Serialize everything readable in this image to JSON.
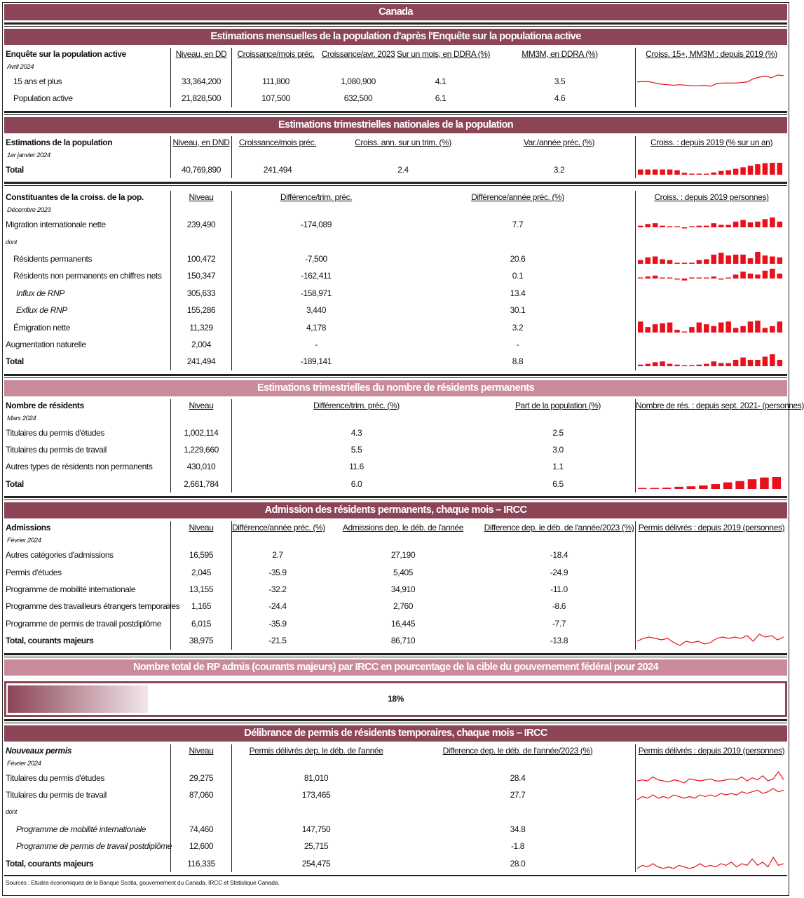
{
  "title": "Canada",
  "sections": [
    {
      "kind": "table",
      "theme": "dark",
      "title": "Estimations mensuelles de la population d'après l'Enquête sur la populationa active",
      "blocks": [
        {
          "label": "Enquête sur la population active",
          "sub": "Avril 2024",
          "headers": [
            "Niveau, en DD",
            "Croissance/mois préc.",
            "Croissance/avr. 2023",
            "Sur un mois, en DDRA (%)",
            "MM3M, en DDRA (%)"
          ],
          "chart_title": "Croiss. 15+, MM3M : depuis 2019 (%)",
          "rows": [
            {
              "label": "15 ans et plus",
              "style": "indent",
              "values": [
                "33,364,200",
                "111,800",
                "1,080,900",
                "4.1",
                "3.5"
              ],
              "spark": "lfs"
            },
            {
              "label": "Population active",
              "style": "indent",
              "values": [
                "21,828,500",
                "107,500",
                "632,500",
                "6.1",
                "4.6"
              ]
            }
          ]
        }
      ]
    },
    {
      "kind": "table",
      "theme": "dark",
      "title": "Estimations trimestrielles nationales de la population",
      "blocks": [
        {
          "label": "Estimations de la population",
          "sub": "1er janvier 2024",
          "headers": [
            "Niveau, en DND",
            "Croissance/mois préc.",
            "Croiss. ann. sur un trim. (%)",
            "Var./année préc. (%)"
          ],
          "chart_title": "Croiss. : depuis 2019 (% sur un an)",
          "rows": [
            {
              "label": "Total",
              "style": "bold",
              "values": [
                "40,769,890",
                "241,494",
                "2.4",
                "3.2"
              ],
              "spark": "popgrowth"
            }
          ]
        },
        {
          "label": "Constituantes de la croiss. de la pop.",
          "sub": "Décembre 2023",
          "headers": [
            "Niveau",
            "Différence/trim. préc.",
            "Différence/année préc. (%)"
          ],
          "chart_title": "Croiss. : depuis 2019 personnes)",
          "rows": [
            {
              "label": "Migration internationale nette",
              "style": "",
              "values": [
                "239,490",
                "-174,089",
                "7.7"
              ],
              "spark": "migration"
            },
            {
              "label": "dont",
              "style": "dont",
              "values": [
                "",
                "",
                ""
              ]
            },
            {
              "label": "Résidents permanents",
              "style": "indent",
              "values": [
                "100,472",
                "-7,500",
                "20.6"
              ],
              "spark": "rp"
            },
            {
              "label": "Résidents non permanents en chiffres nets",
              "style": "indent",
              "values": [
                "150,347",
                "-162,411",
                "0.1"
              ],
              "spark": "rnp"
            },
            {
              "label": "Influx de RNP",
              "style": "ital",
              "values": [
                "305,633",
                "-158,971",
                "13.4"
              ]
            },
            {
              "label": "Exflux de RNP",
              "style": "ital",
              "values": [
                "155,286",
                "3,440",
                "30.1"
              ]
            },
            {
              "label": "Émigration nette",
              "style": "indent",
              "values": [
                "11,329",
                "4,178",
                "3.2"
              ],
              "spark": "emig"
            },
            {
              "label": "Augmentation naturelle",
              "style": "",
              "values": [
                "2,004",
                "-",
                "-"
              ]
            },
            {
              "label": "Total",
              "style": "bold",
              "values": [
                "241,494",
                "-189,141",
                "8.8"
              ],
              "spark": "total"
            }
          ]
        }
      ]
    },
    {
      "kind": "table",
      "theme": "light",
      "title": "Estimations trimestrielles du nombre de résidents permanents",
      "blocks": [
        {
          "label": "Nombre de résidents",
          "sub": "Mars 2024",
          "headers": [
            "Niveau",
            "Différence/trim. préc. (%)",
            "Part de la population (%)"
          ],
          "chart_title": "Nombre de rés. : depuis sept. 2021- (personnes)",
          "rows": [
            {
              "label": "Titulaires du permis d'études",
              "style": "",
              "values": [
                "1,002,114",
                "4.3",
                "2.5"
              ]
            },
            {
              "label": "Titulaires du permis de travail",
              "style": "",
              "values": [
                "1,229,660",
                "5.5",
                "3.0"
              ]
            },
            {
              "label": "Autres types de résidents non permanents",
              "style": "",
              "values": [
                "430,010",
                "11.6",
                "1.1"
              ]
            },
            {
              "label": "Total",
              "style": "bold",
              "values": [
                "2,661,784",
                "6.0",
                "6.5"
              ],
              "spark": "nrp"
            }
          ]
        }
      ]
    },
    {
      "kind": "table",
      "theme": "dark",
      "title": "Admission des résidents permanents, chaque mois – IRCC",
      "blocks": [
        {
          "label": "Admissions",
          "sub": "Février 2024",
          "headers": [
            "Niveau",
            "Différence/année préc. (%)",
            "Admissions dep. le déb. de l'année",
            "Difference dep. le déb. de l'année/2023 (%)"
          ],
          "chart_title": "Permis délivrés : depuis 2019 (personnes)",
          "rows": [
            {
              "label": "Autres catégories d'admissions",
              "style": "",
              "values": [
                "16,595",
                "2.7",
                "27,190",
                "-18.4"
              ]
            },
            {
              "label": "Permis d'études",
              "style": "",
              "values": [
                "2,045",
                "-35.9",
                "5,405",
                "-24.9"
              ]
            },
            {
              "label": "Programme de mobilité internationale",
              "style": "",
              "values": [
                "13,155",
                "-32.2",
                "34,910",
                "-11.0"
              ]
            },
            {
              "label": "Programme des travailleurs étrangers temporaires",
              "style": "",
              "values": [
                "1,165",
                "-24.4",
                "2,760",
                "-8.6"
              ]
            },
            {
              "label": "Programme de permis de travail postdiplôme",
              "style": "",
              "values": [
                "6,015",
                "-35.9",
                "16,445",
                "-7.7"
              ]
            },
            {
              "label": "Total, courants majeurs",
              "style": "bold",
              "values": [
                "38,975",
                "-21.5",
                "86,710",
                "-13.8"
              ],
              "spark": "adm"
            }
          ]
        }
      ]
    },
    {
      "kind": "progress",
      "theme": "light",
      "title": "Nombre total de RP admis (courants majeurs) par IRCC en pourcentage de la cible du gouvernement fédéral pour 2024",
      "value": 18,
      "label": "18%"
    },
    {
      "kind": "table",
      "theme": "dark",
      "title": "Délibrance de permis de résidents temporaires, chaque mois – IRCC",
      "blocks": [
        {
          "label": "Nouveaux permis",
          "label_italic": true,
          "sub": "Février 2024",
          "headers": [
            "Niveau",
            "Permis délivrés dep. le déb. de l'année",
            "Difference dep. le déb. de l'année/2023 (%)"
          ],
          "chart_title": "Permis délivrés : depuis 2019 (personnes)",
          "rows": [
            {
              "label": "Titulaires du permis d'études",
              "style": "",
              "values": [
                "29,275",
                "81,010",
                "28.4"
              ],
              "spark": "stud"
            },
            {
              "label": "Titulaires du permis de travail",
              "style": "",
              "values": [
                "87,060",
                "173,465",
                "27.7"
              ],
              "spark": "work"
            },
            {
              "label": "dont",
              "style": "dont",
              "values": [
                "",
                "",
                ""
              ]
            },
            {
              "label": "Programme de mobilité internationale",
              "style": "ital",
              "values": [
                "74,460",
                "147,750",
                "34.8"
              ]
            },
            {
              "label": "Programme de permis de travail postdiplôme",
              "style": "ital",
              "values": [
                "12,600",
                "25,715",
                "-1.8"
              ]
            },
            {
              "label": "Total, courants majeurs",
              "style": "bold",
              "values": [
                "116,335",
                "254,475",
                "28.0"
              ],
              "spark": "tot6"
            }
          ]
        }
      ]
    }
  ],
  "footer": "Sources : Etudes économiques de la Banque Scotia, gouvernement du Canada, IRCC et Statistique Canada.",
  "colors": {
    "dark": "#8C4457",
    "light": "#C98B9B",
    "spark": "#E8101B"
  },
  "chart_data": {
    "type": "line",
    "sparklines": {
      "lfs": {
        "type": "line",
        "values": [
          1.2,
          1.3,
          1.25,
          1.0,
          0.8,
          0.7,
          0.6,
          0.7,
          0.6,
          0.5,
          0.5,
          0.6,
          0.4,
          0.9,
          1.0,
          1.0,
          1.0,
          1.1,
          1.2,
          1.8,
          2.1,
          2.3,
          2.0,
          2.5,
          2.4
        ]
      },
      "popgrowth": {
        "type": "bar",
        "values": [
          1.4,
          1.4,
          1.4,
          1.4,
          1.4,
          1.2,
          0.5,
          0.1,
          0.1,
          0.2,
          0.6,
          1.0,
          1.2,
          1.6,
          2.0,
          2.4,
          2.8,
          3.1,
          3.2,
          3.2
        ]
      },
      "migration": {
        "type": "bar",
        "values": [
          2,
          4,
          5,
          2,
          1,
          0,
          -1,
          1,
          2,
          2,
          5,
          3,
          3,
          7,
          9,
          6,
          7,
          10,
          12,
          7
        ]
      },
      "rp": {
        "type": "bar",
        "values": [
          4,
          7,
          8,
          5,
          4,
          0,
          1,
          1,
          4,
          5,
          10,
          12,
          9,
          10,
          10,
          6,
          13,
          9,
          8,
          7
        ]
      },
      "rnp": {
        "type": "bar",
        "values": [
          1,
          2,
          3,
          0,
          0,
          -1,
          -2,
          0,
          0,
          0,
          2,
          -1,
          0,
          4,
          7,
          5,
          4,
          8,
          10,
          5
        ]
      },
      "emig": {
        "type": "bar",
        "values": [
          12,
          6,
          9,
          10,
          11,
          3,
          0,
          6,
          11,
          9,
          7,
          11,
          12,
          5,
          7,
          12,
          13,
          5,
          7,
          12
        ]
      },
      "total": {
        "type": "bar",
        "values": [
          2,
          3,
          5,
          6,
          3,
          2,
          0,
          1,
          2,
          3,
          6,
          4,
          4,
          8,
          11,
          8,
          8,
          12,
          15,
          8
        ]
      },
      "nrp": {
        "type": "bar",
        "values": [
          0.2,
          0.2,
          0.3,
          0.5,
          0.6,
          0.8,
          1.1,
          1.5,
          1.8,
          2.2,
          2.6,
          2.7
        ]
      },
      "adm": {
        "type": "line",
        "values": [
          3,
          5,
          6,
          5,
          4,
          5,
          2,
          0,
          3,
          2,
          3,
          1,
          2,
          5,
          6,
          5,
          6,
          5,
          7,
          3,
          8,
          6,
          7,
          4,
          6
        ]
      },
      "stud": {
        "type": "line",
        "values": [
          5,
          6,
          5,
          9,
          6,
          5,
          4,
          6,
          5,
          3,
          7,
          6,
          5,
          6,
          7,
          5,
          5,
          6,
          7,
          6,
          9,
          5,
          8,
          6,
          10,
          5,
          7,
          14,
          6
        ]
      },
      "work": {
        "type": "line",
        "values": [
          4,
          6,
          5,
          7,
          5,
          6,
          5,
          7,
          6,
          5,
          6,
          5,
          7,
          6,
          7,
          6,
          8,
          7,
          8,
          7,
          9,
          8,
          9,
          10,
          8,
          9,
          11,
          9,
          10
        ]
      },
      "tot6": {
        "type": "line",
        "values": [
          2,
          4,
          3,
          5,
          3,
          2,
          3,
          2,
          4,
          3,
          2,
          3,
          5,
          3,
          4,
          3,
          5,
          4,
          6,
          3,
          5,
          4,
          8,
          4,
          6,
          3,
          9,
          4,
          5
        ]
      }
    }
  }
}
